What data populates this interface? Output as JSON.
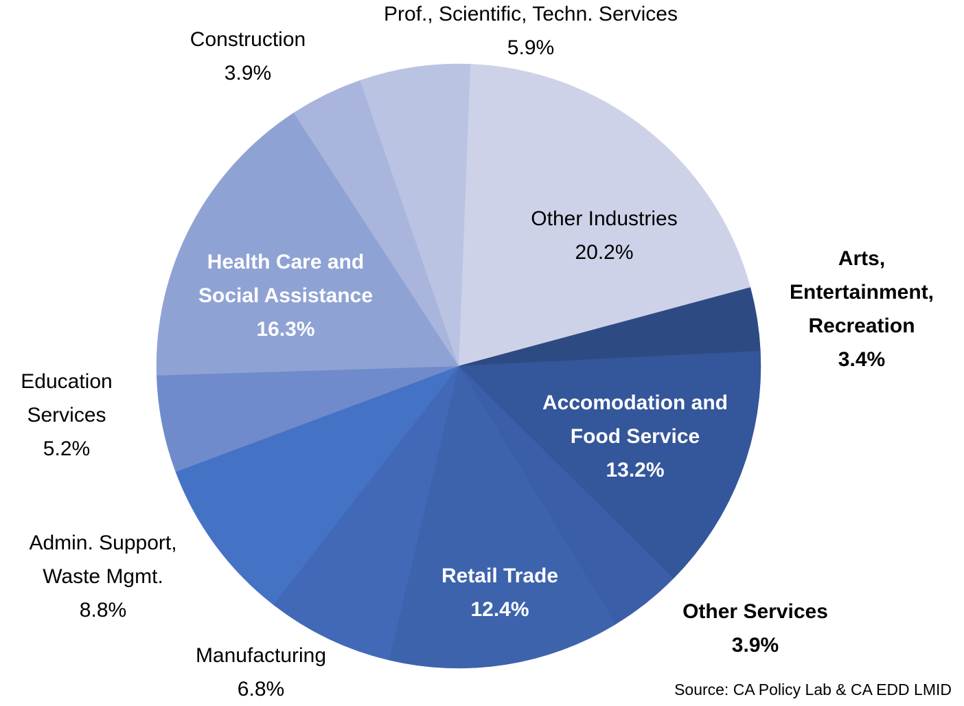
{
  "chart_data": {
    "type": "pie",
    "categories": [
      "Other Industries",
      "Arts, Entertainment, Recreation",
      "Accomodation and Food Service",
      "Other Services",
      "Retail Trade",
      "Manufacturing",
      "Admin. Support, Waste Mgmt.",
      "Education Services",
      "Health Care and Social Assistance",
      "Construction",
      "Prof., Scientific, Techn. Services"
    ],
    "values": [
      20.2,
      3.4,
      13.2,
      3.9,
      12.4,
      6.8,
      8.8,
      5.2,
      16.3,
      3.9,
      5.9
    ],
    "value_labels": [
      "20.2%",
      "3.4%",
      "13.2%",
      "3.9%",
      "12.4%",
      "6.8%",
      "8.8%",
      "5.2%",
      "16.3%",
      "3.9%",
      "5.9%"
    ],
    "colors": [
      "#cdd2e8",
      "#2e4a82",
      "#34569a",
      "#3a5ea8",
      "#3d63ac",
      "#4169b8",
      "#4472c4",
      "#6f8bcb",
      "#8fa2d4",
      "#a9b5dc",
      "#bac3e2"
    ],
    "source": "Source: CA Policy Lab & CA EDD LMID"
  }
}
